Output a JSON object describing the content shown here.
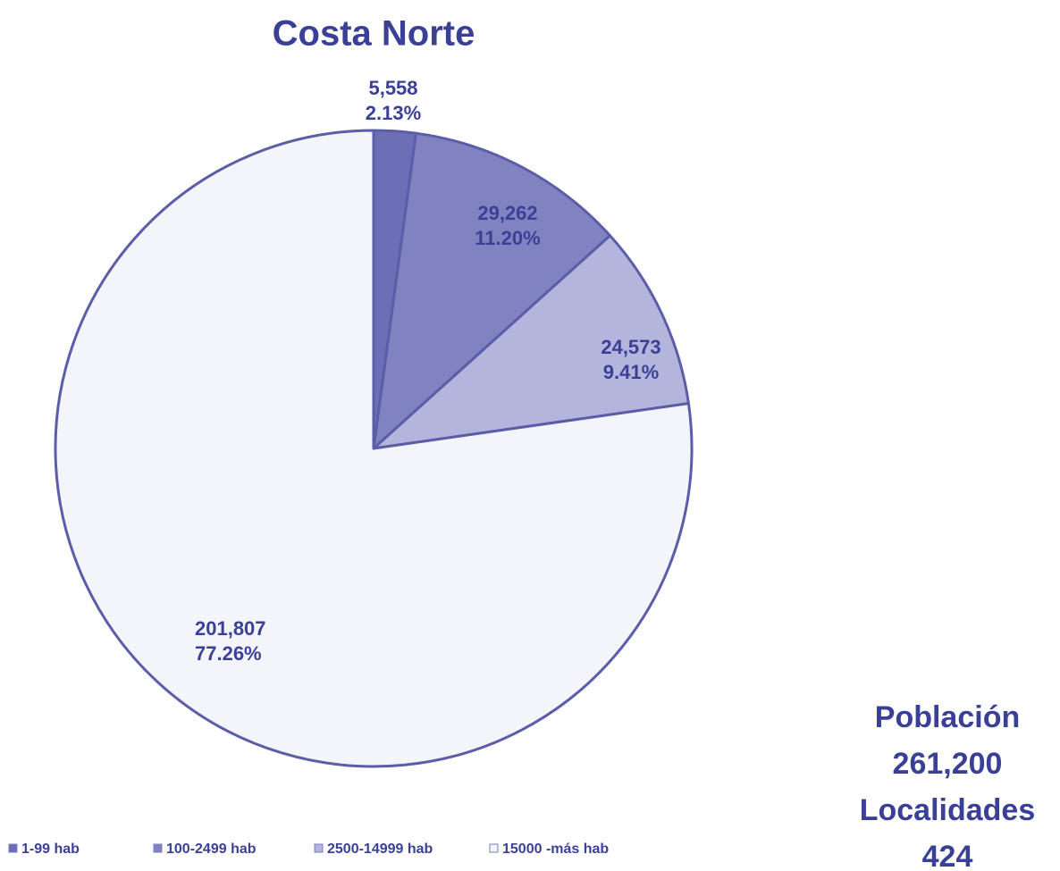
{
  "chart_data": {
    "type": "pie",
    "title": "Costa Norte",
    "categories": [
      "1-99 hab",
      "100-2499 hab",
      "2500-14999 hab",
      "15000 -más hab"
    ],
    "values": [
      5558,
      29262,
      24573,
      201807
    ],
    "value_labels": [
      "5,558",
      "29,262",
      "24,573",
      "201,807"
    ],
    "percentages": [
      2.13,
      11.2,
      9.41,
      77.26
    ],
    "percentage_labels": [
      "2.13%",
      "11.20%",
      "9.41%",
      "77.26%"
    ],
    "colors": [
      "#6d6fb6",
      "#8183c1",
      "#b4b5dc",
      "#f3f5fb"
    ],
    "annotations": [
      "Población",
      "261,200",
      "Localidades",
      "424"
    ],
    "legend": "bottom"
  }
}
